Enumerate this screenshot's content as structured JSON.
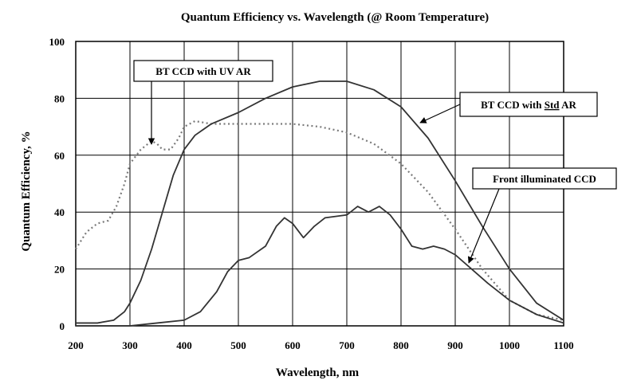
{
  "chart_data": {
    "type": "line",
    "title": "Quantum Efficiency vs. Wavelength (@ Room Temperature)",
    "xlabel": "Wavelength, nm",
    "ylabel": "Quantum Efficiency, %",
    "xlim": [
      200,
      1100
    ],
    "ylim": [
      0,
      100
    ],
    "xticks": [
      200,
      300,
      400,
      500,
      600,
      700,
      800,
      900,
      1000,
      1100
    ],
    "yticks": [
      0,
      20,
      40,
      60,
      80,
      100
    ],
    "grid": true,
    "series": [
      {
        "name": "BT CCD with UV AR",
        "style": "dotted",
        "x": [
          200,
          220,
          240,
          260,
          275,
          290,
          300,
          320,
          340,
          350,
          360,
          375,
          390,
          400,
          420,
          450,
          500,
          550,
          600,
          650,
          700,
          750,
          800,
          850,
          900,
          950,
          1000,
          1050,
          1100
        ],
        "y": [
          27,
          33,
          36,
          37,
          42,
          50,
          57,
          62,
          65,
          64,
          62,
          62,
          66,
          70,
          72,
          71,
          71,
          71,
          71,
          70,
          68,
          64,
          57,
          47,
          34,
          20,
          9,
          4,
          2
        ]
      },
      {
        "name": "BT CCD with Std AR",
        "style": "solid",
        "x": [
          200,
          240,
          270,
          290,
          300,
          320,
          340,
          360,
          380,
          400,
          420,
          450,
          500,
          550,
          600,
          650,
          700,
          750,
          800,
          850,
          900,
          950,
          1000,
          1050,
          1100
        ],
        "y": [
          1,
          1,
          2,
          5,
          8,
          16,
          27,
          40,
          53,
          62,
          67,
          71,
          75,
          80,
          84,
          86,
          86,
          83,
          77,
          66,
          51,
          35,
          20,
          8,
          2
        ]
      },
      {
        "name": "Front illuminated CCD",
        "style": "solid",
        "x": [
          200,
          260,
          300,
          350,
          400,
          430,
          460,
          480,
          500,
          520,
          550,
          570,
          585,
          600,
          620,
          640,
          660,
          700,
          720,
          740,
          760,
          780,
          800,
          820,
          840,
          860,
          880,
          900,
          930,
          960,
          1000,
          1050,
          1100
        ],
        "y": [
          0,
          0,
          0,
          1,
          2,
          5,
          12,
          19,
          23,
          24,
          28,
          35,
          38,
          36,
          31,
          35,
          38,
          39,
          42,
          40,
          42,
          39,
          34,
          28,
          27,
          28,
          27,
          25,
          20,
          15,
          9,
          4,
          1
        ]
      }
    ],
    "annotations": [
      {
        "text": "BT CCD with UV AR",
        "series": 0
      },
      {
        "text": "BT CCD with ",
        "text_underlined": "Std",
        "text_after": " AR",
        "series": 1
      },
      {
        "text": "Front illuminated CCD",
        "series": 2
      }
    ]
  }
}
